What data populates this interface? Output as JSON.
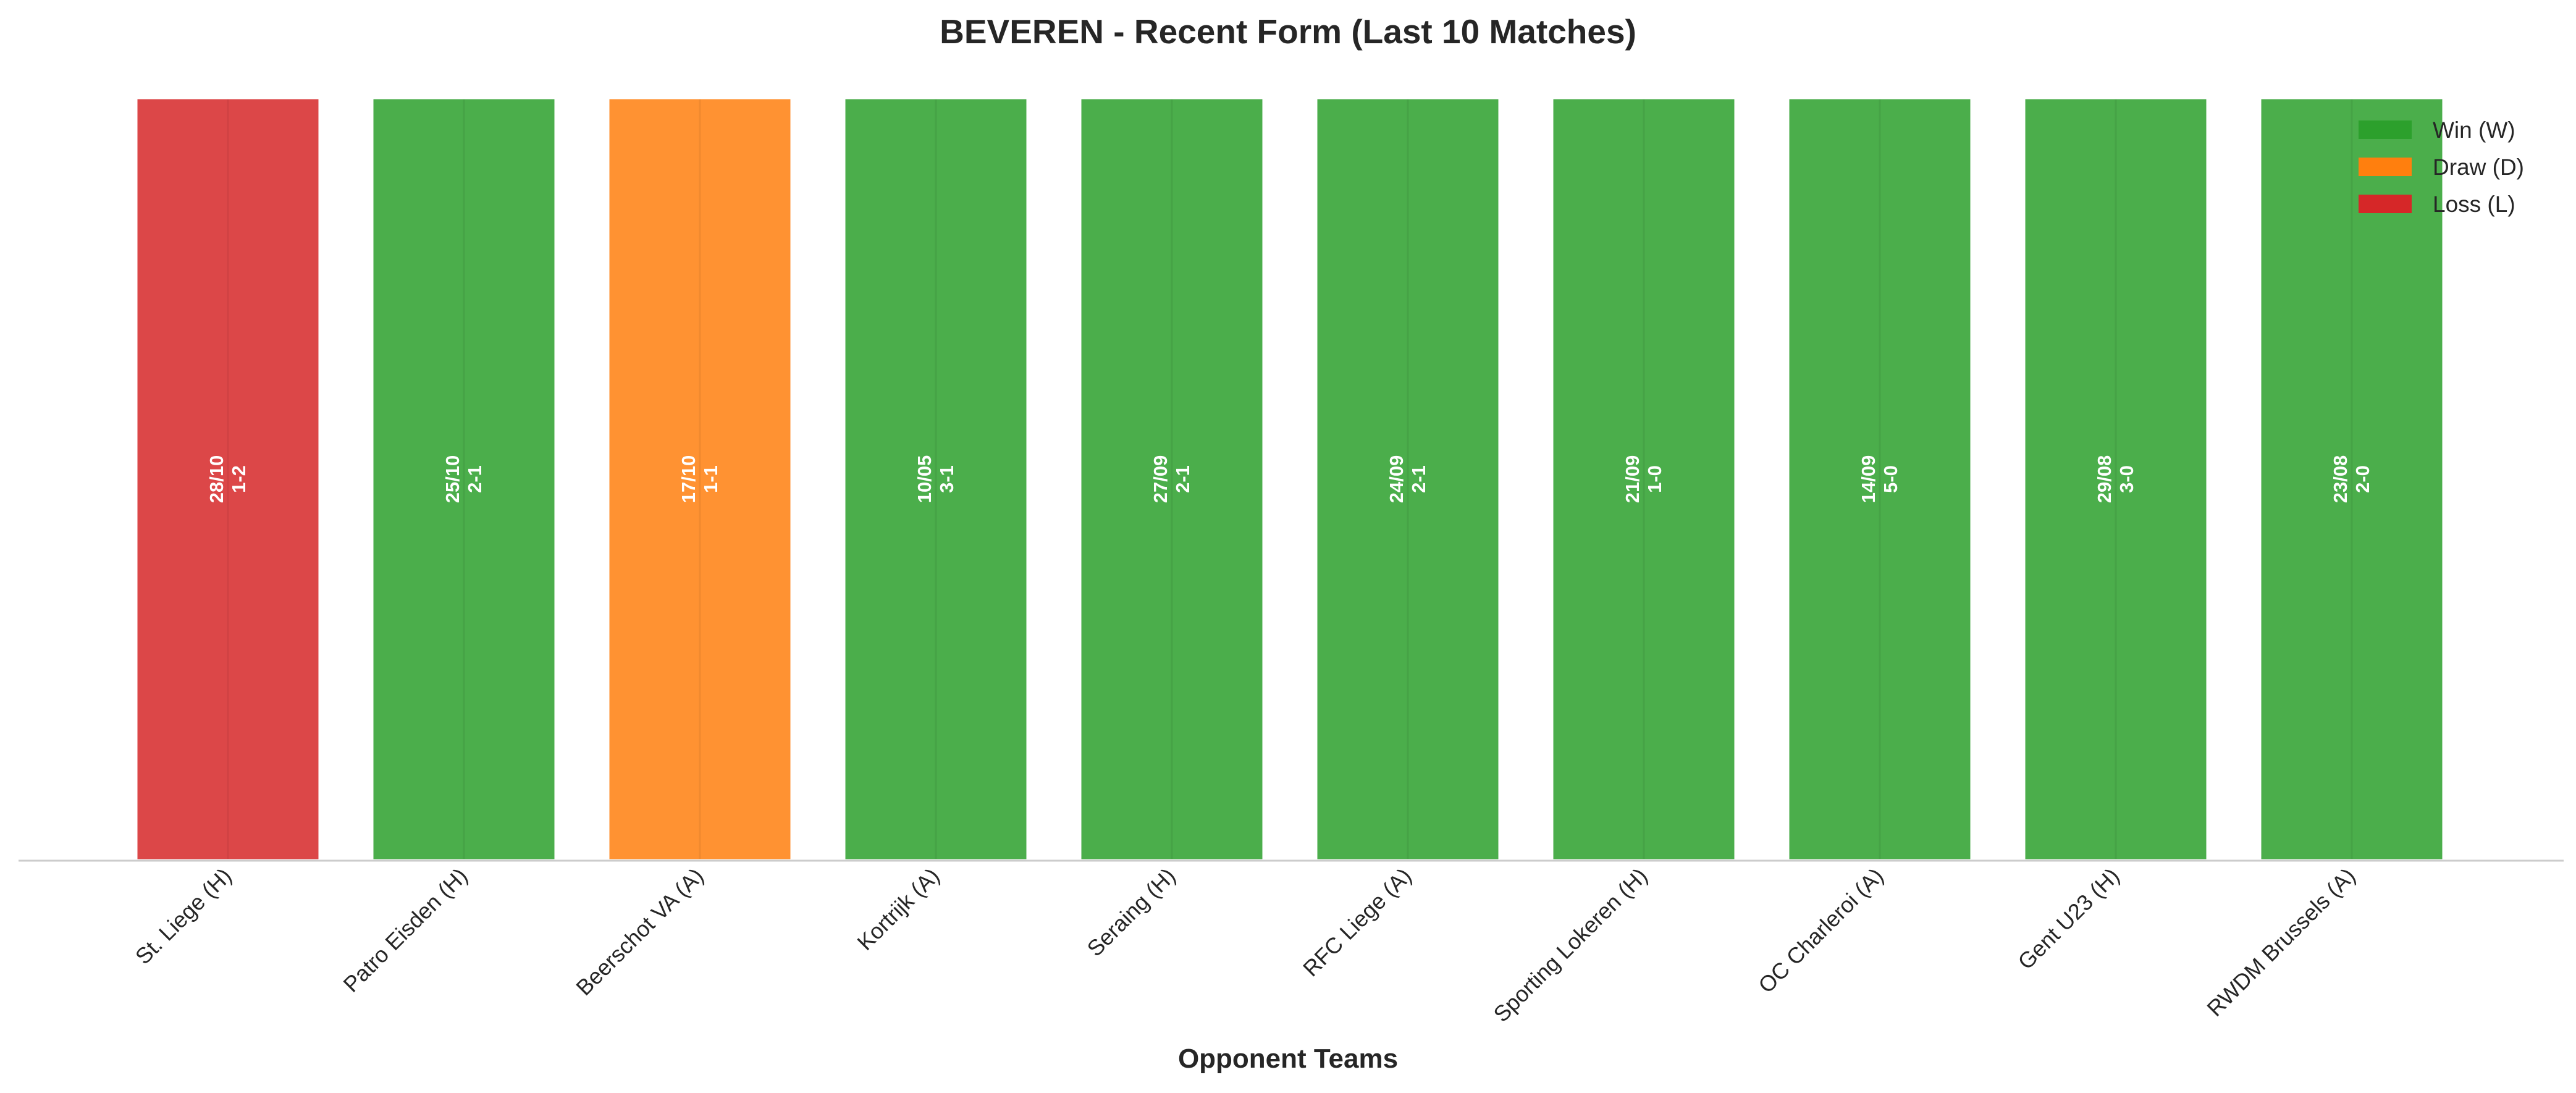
{
  "chart_data": {
    "type": "bar",
    "title": "BEVEREN - Recent Form (Last 10 Matches)",
    "xlabel": "Opponent Teams",
    "ylabel": "",
    "ylim": [
      0,
      1
    ],
    "grid": false,
    "legend_position": "top-right",
    "categories": [
      "St. Liege (H)",
      "Patro Eisden (H)",
      "Beerschot VA (A)",
      "Kortrijk (A)",
      "Seraing (H)",
      "RFC Liege (A)",
      "Sporting Lokeren (H)",
      "OC Charleroi (A)",
      "Gent U23 (H)",
      "RWDM Brussels (A)"
    ],
    "values": [
      1,
      1,
      1,
      1,
      1,
      1,
      1,
      1,
      1,
      1
    ],
    "results": [
      "L",
      "W",
      "D",
      "W",
      "W",
      "W",
      "W",
      "W",
      "W",
      "W"
    ],
    "dates": [
      "28/10",
      "25/10",
      "17/10",
      "10/05",
      "27/09",
      "24/09",
      "21/09",
      "14/09",
      "29/08",
      "23/08"
    ],
    "scores": [
      "1-2",
      "2-1",
      "1-1",
      "3-1",
      "2-1",
      "2-1",
      "1-0",
      "5-0",
      "3-0",
      "2-0"
    ],
    "legend": [
      {
        "key": "W",
        "label": "Win (W)",
        "color": "#2ca02c"
      },
      {
        "key": "D",
        "label": "Draw (D)",
        "color": "#ff7f0e"
      },
      {
        "key": "L",
        "label": "Loss (L)",
        "color": "#d62728"
      }
    ]
  }
}
